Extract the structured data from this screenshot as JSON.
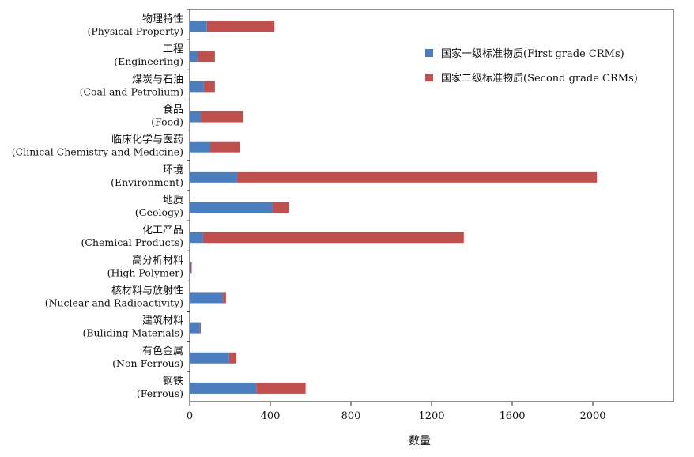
{
  "chart_data": {
    "type": "bar",
    "orientation": "horizontal",
    "stacked": true,
    "categories": [
      {
        "cn": "物理特性",
        "en": "(Physical Property)"
      },
      {
        "cn": "工程",
        "en": "(Engineering)"
      },
      {
        "cn": "煤炭与石油",
        "en": "(Coal and Petrolium)"
      },
      {
        "cn": "食品",
        "en": "(Food)"
      },
      {
        "cn": "临床化学与医药",
        "en": "(Clinical Chemistry and Medicine)"
      },
      {
        "cn": "环境",
        "en": "(Environment)"
      },
      {
        "cn": "地质",
        "en": "(Geology)"
      },
      {
        "cn": "化工产品",
        "en": "(Chemical Products)"
      },
      {
        "cn": "高分析材料",
        "en": "(High Polymer)"
      },
      {
        "cn": "核材料与放射性",
        "en": "(Nuclear and Radioactivity)"
      },
      {
        "cn": "建筑材料",
        "en": "(Buliding Materials)"
      },
      {
        "cn": "有色金属",
        "en": "(Non-Ferrous)"
      },
      {
        "cn": "钢铁",
        "en": "(Ferrous)"
      }
    ],
    "series": [
      {
        "name": "国家一级标准物质(First grade CRMs)",
        "color": "#4a7ebf",
        "values": [
          85,
          40,
          70,
          55,
          100,
          235,
          410,
          65,
          3,
          165,
          50,
          195,
          330
        ]
      },
      {
        "name": "国家二级标准物质(Second grade CRMs)",
        "color": "#c0504d",
        "values": [
          335,
          85,
          55,
          210,
          150,
          1785,
          80,
          1295,
          7,
          15,
          5,
          35,
          245
        ]
      }
    ],
    "xlabel": "数量",
    "ylabel": "",
    "xlim": [
      0,
      2400
    ],
    "xticks": [
      0,
      400,
      800,
      1200,
      1600,
      2000
    ],
    "grid": false,
    "legend_position": "top-right"
  }
}
